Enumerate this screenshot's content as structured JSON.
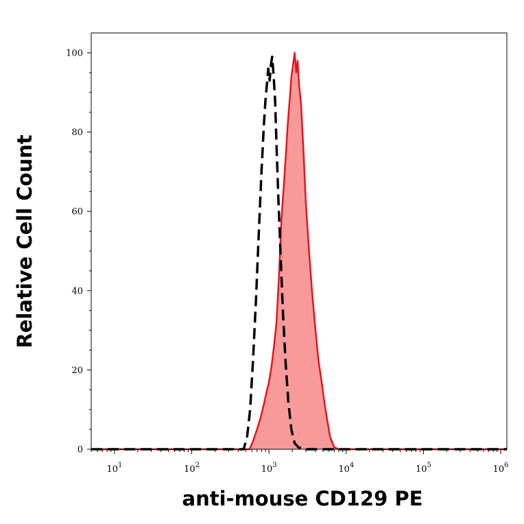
{
  "chart_data": {
    "type": "area",
    "xlabel": "anti-mouse CD129 PE",
    "ylabel": "Relative Cell Count",
    "x_scale": "log",
    "xlim": [
      5,
      1200000
    ],
    "ylim": [
      0,
      100
    ],
    "x_ticks": [
      {
        "value": 10,
        "base": "10",
        "exp": "1"
      },
      {
        "value": 100,
        "base": "10",
        "exp": "2"
      },
      {
        "value": 1000,
        "base": "10",
        "exp": "3"
      },
      {
        "value": 10000,
        "base": "10",
        "exp": "4"
      },
      {
        "value": 100000,
        "base": "10",
        "exp": "5"
      },
      {
        "value": 1000000,
        "base": "10",
        "exp": "6"
      }
    ],
    "y_ticks": [
      "0",
      "20",
      "40",
      "60",
      "80",
      "100"
    ],
    "grid": false,
    "colors": {
      "stained_line": "#e8141c",
      "stained_fill": "#f99a9a",
      "control_line": "#000000"
    },
    "series": [
      {
        "style": "filled-solid",
        "x": [
          5,
          300,
          560,
          620,
          700,
          780,
          850,
          920,
          1000,
          1080,
          1160,
          1250,
          1350,
          1450,
          1550,
          1650,
          1750,
          1850,
          1950,
          2050,
          2150,
          2250,
          2350,
          2450,
          2600,
          2800,
          3000,
          3300,
          3600,
          4000,
          4400,
          4800,
          5200,
          5600,
          6200,
          7000,
          8000,
          10000,
          100000,
          1200000
        ],
        "y": [
          0,
          0,
          0,
          2,
          5,
          8,
          11,
          14,
          17,
          21,
          26,
          32,
          44,
          58,
          66,
          74,
          82,
          88,
          94,
          97,
          100,
          95,
          98,
          92,
          87,
          75,
          62,
          50,
          40,
          30,
          22,
          17,
          12,
          8,
          3,
          0.5,
          0,
          0,
          0,
          0
        ]
      },
      {
        "style": "dashed",
        "x": [
          5,
          300,
          470,
          520,
          570,
          620,
          680,
          740,
          800,
          860,
          900,
          940,
          980,
          1020,
          1060,
          1100,
          1150,
          1200,
          1260,
          1330,
          1420,
          1520,
          1640,
          1780,
          1950,
          2150,
          2400,
          2800,
          3500,
          5000,
          100000,
          1200000
        ],
        "y": [
          0,
          0,
          0,
          3,
          10,
          22,
          38,
          55,
          70,
          82,
          88,
          92,
          96,
          93,
          97,
          99,
          94,
          88,
          75,
          62,
          48,
          34,
          22,
          12,
          5,
          1.5,
          0.5,
          0,
          0,
          0,
          0,
          0
        ]
      }
    ]
  }
}
